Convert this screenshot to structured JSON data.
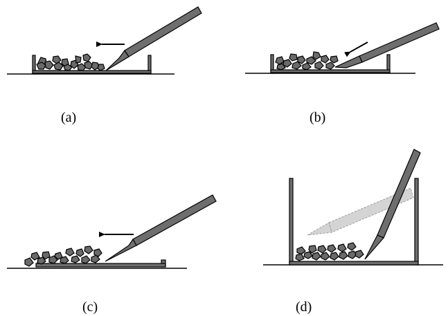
{
  "panels": [
    {
      "id": "a",
      "label": "(a)"
    },
    {
      "id": "b",
      "label": "(b)"
    },
    {
      "id": "c",
      "label": "(c)"
    },
    {
      "id": "d",
      "label": "(d)"
    }
  ],
  "colors": {
    "ink": "#000000",
    "tool_fill": "#6e6e6e",
    "rock_fill": "#6a6a6a",
    "ghost_fill": "#d4d4d4",
    "ghost_stroke": "#999999",
    "background": "#ffffff"
  }
}
